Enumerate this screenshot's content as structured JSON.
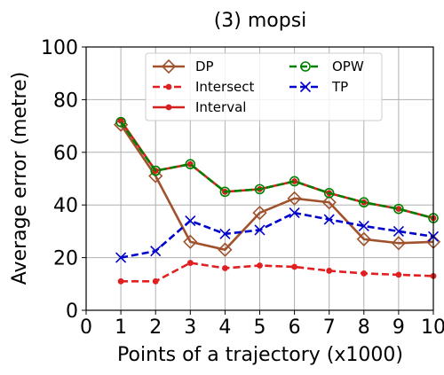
{
  "chart_data": {
    "type": "line",
    "title": "(3) mopsi",
    "xlabel": "Points of a trajectory (x1000)",
    "ylabel": "Average error (metre)",
    "xlim": [
      0,
      10
    ],
    "ylim": [
      0,
      100
    ],
    "xticks": [
      "0",
      "1",
      "2",
      "3",
      "4",
      "5",
      "6",
      "7",
      "8",
      "9",
      "10"
    ],
    "yticks": [
      "0",
      "20",
      "40",
      "60",
      "80",
      "100"
    ],
    "grid": true,
    "legend_position": "top",
    "x": [
      1,
      2,
      3,
      4,
      5,
      6,
      7,
      8,
      9,
      10
    ],
    "series": [
      {
        "name": "DP",
        "color": "#a0522d",
        "line": "solid",
        "marker": "open-diamond",
        "values": [
          70.5,
          51,
          26,
          23,
          37,
          42.5,
          41,
          27,
          25.5,
          26
        ]
      },
      {
        "name": "Intersect",
        "color": "#e02020",
        "line": "dashed",
        "marker": "dot",
        "values": [
          11,
          11,
          18,
          16,
          17,
          16.5,
          15,
          14,
          13.5,
          13
        ]
      },
      {
        "name": "Interval",
        "color": "#d62020",
        "line": "solid",
        "marker": "dot",
        "values": [
          72,
          53,
          55.5,
          45,
          46,
          49,
          44.5,
          41,
          38.5,
          35
        ]
      },
      {
        "name": "OPW",
        "color": "#008000",
        "line": "dashed",
        "marker": "open-circle",
        "values": [
          71.5,
          53,
          55.5,
          45,
          46,
          49,
          44.5,
          41,
          38.5,
          35
        ]
      },
      {
        "name": "TP",
        "color": "#0000cc",
        "line": "dashed",
        "marker": "x",
        "values": [
          20,
          22.5,
          34,
          29,
          30.5,
          37,
          34.5,
          32,
          30,
          28
        ]
      }
    ]
  }
}
